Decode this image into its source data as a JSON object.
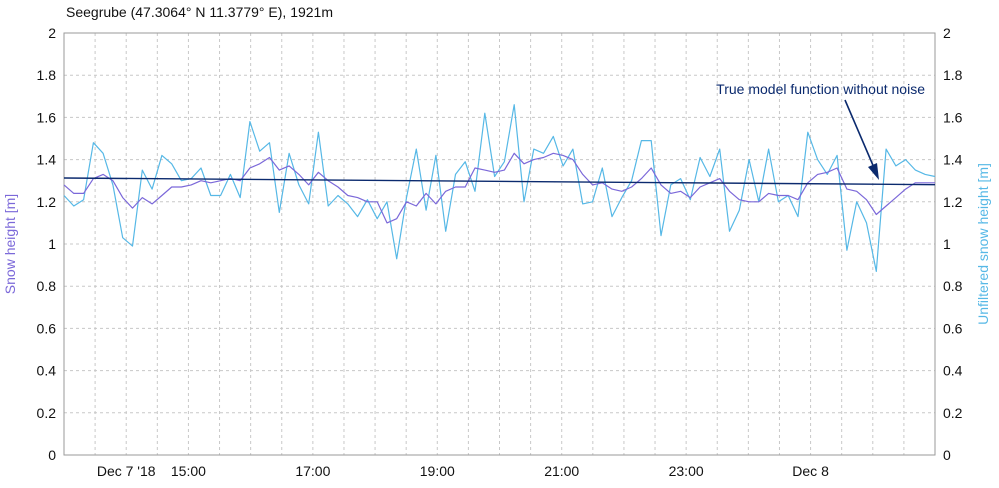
{
  "chart_data": {
    "type": "line",
    "title": "Seegrube (47.3064° N 11.3779° E), 1921m",
    "ylabel_left": "Snow height [m]",
    "ylabel_right": "Unfiltered snow height [m]",
    "ylim": [
      0,
      2
    ],
    "yticks": [
      "0",
      "0.2",
      "0.4",
      "0.6",
      "0.8",
      "1",
      "1.2",
      "1.4",
      "1.6",
      "1.8",
      "2"
    ],
    "xlim": [
      "2018-12-07 13:00",
      "2018-12-08 03:00"
    ],
    "xticks": [
      {
        "t": "2018-12-07 14:00",
        "label": "Dec 7 '18"
      },
      {
        "t": "2018-12-07 15:00",
        "label": "15:00"
      },
      {
        "t": "2018-12-07 17:00",
        "label": "17:00"
      },
      {
        "t": "2018-12-07 19:00",
        "label": "19:00"
      },
      {
        "t": "2018-12-07 21:00",
        "label": "21:00"
      },
      {
        "t": "2018-12-07 23:00",
        "label": "23:00"
      },
      {
        "t": "2018-12-08 01:00",
        "label": "Dec 8"
      }
    ],
    "annotation": "True model function without noise",
    "series": [
      {
        "axis": "right",
        "color": "#56b8e6",
        "values": [
          1.23,
          1.18,
          1.21,
          1.48,
          1.43,
          1.28,
          1.03,
          0.99,
          1.35,
          1.26,
          1.42,
          1.38,
          1.3,
          1.31,
          1.36,
          1.23,
          1.23,
          1.33,
          1.22,
          1.58,
          1.44,
          1.48,
          1.15,
          1.43,
          1.28,
          1.19,
          1.53,
          1.18,
          1.23,
          1.19,
          1.13,
          1.21,
          1.12,
          1.2,
          0.93,
          1.22,
          1.45,
          1.16,
          1.42,
          1.06,
          1.33,
          1.39,
          1.25,
          1.62,
          1.32,
          1.39,
          1.66,
          1.2,
          1.45,
          1.43,
          1.51,
          1.37,
          1.45,
          1.19,
          1.2,
          1.36,
          1.13,
          1.22,
          1.3,
          1.49,
          1.49,
          1.04,
          1.28,
          1.31,
          1.21,
          1.41,
          1.32,
          1.45,
          1.06,
          1.16,
          1.4,
          1.2,
          1.45,
          1.2,
          1.23,
          1.13,
          1.53,
          1.4,
          1.33,
          1.42,
          0.97,
          1.2,
          1.1,
          0.87,
          1.45,
          1.37,
          1.4,
          1.35,
          1.33,
          1.32
        ]
      },
      {
        "axis": "left",
        "color": "#7b68d9",
        "values": [
          1.28,
          1.24,
          1.24,
          1.31,
          1.33,
          1.3,
          1.22,
          1.17,
          1.22,
          1.19,
          1.23,
          1.27,
          1.27,
          1.28,
          1.3,
          1.29,
          1.3,
          1.31,
          1.3,
          1.36,
          1.38,
          1.41,
          1.35,
          1.37,
          1.33,
          1.28,
          1.34,
          1.3,
          1.27,
          1.23,
          1.22,
          1.2,
          1.2,
          1.1,
          1.12,
          1.2,
          1.18,
          1.24,
          1.19,
          1.25,
          1.27,
          1.27,
          1.36,
          1.35,
          1.34,
          1.35,
          1.43,
          1.38,
          1.4,
          1.41,
          1.43,
          1.42,
          1.4,
          1.33,
          1.28,
          1.29,
          1.26,
          1.25,
          1.27,
          1.31,
          1.36,
          1.28,
          1.24,
          1.25,
          1.22,
          1.27,
          1.29,
          1.31,
          1.25,
          1.21,
          1.2,
          1.2,
          1.24,
          1.23,
          1.23,
          1.21,
          1.29,
          1.33,
          1.34,
          1.36,
          1.26,
          1.25,
          1.21,
          1.14,
          1.18,
          1.22,
          1.26,
          1.29,
          1.29,
          1.29
        ]
      },
      {
        "axis": "left",
        "color": "#0b2a6e",
        "x": [
          "2018-12-07 13:00",
          "2018-12-08 03:00"
        ],
        "values": [
          1.313,
          1.281
        ]
      }
    ]
  }
}
